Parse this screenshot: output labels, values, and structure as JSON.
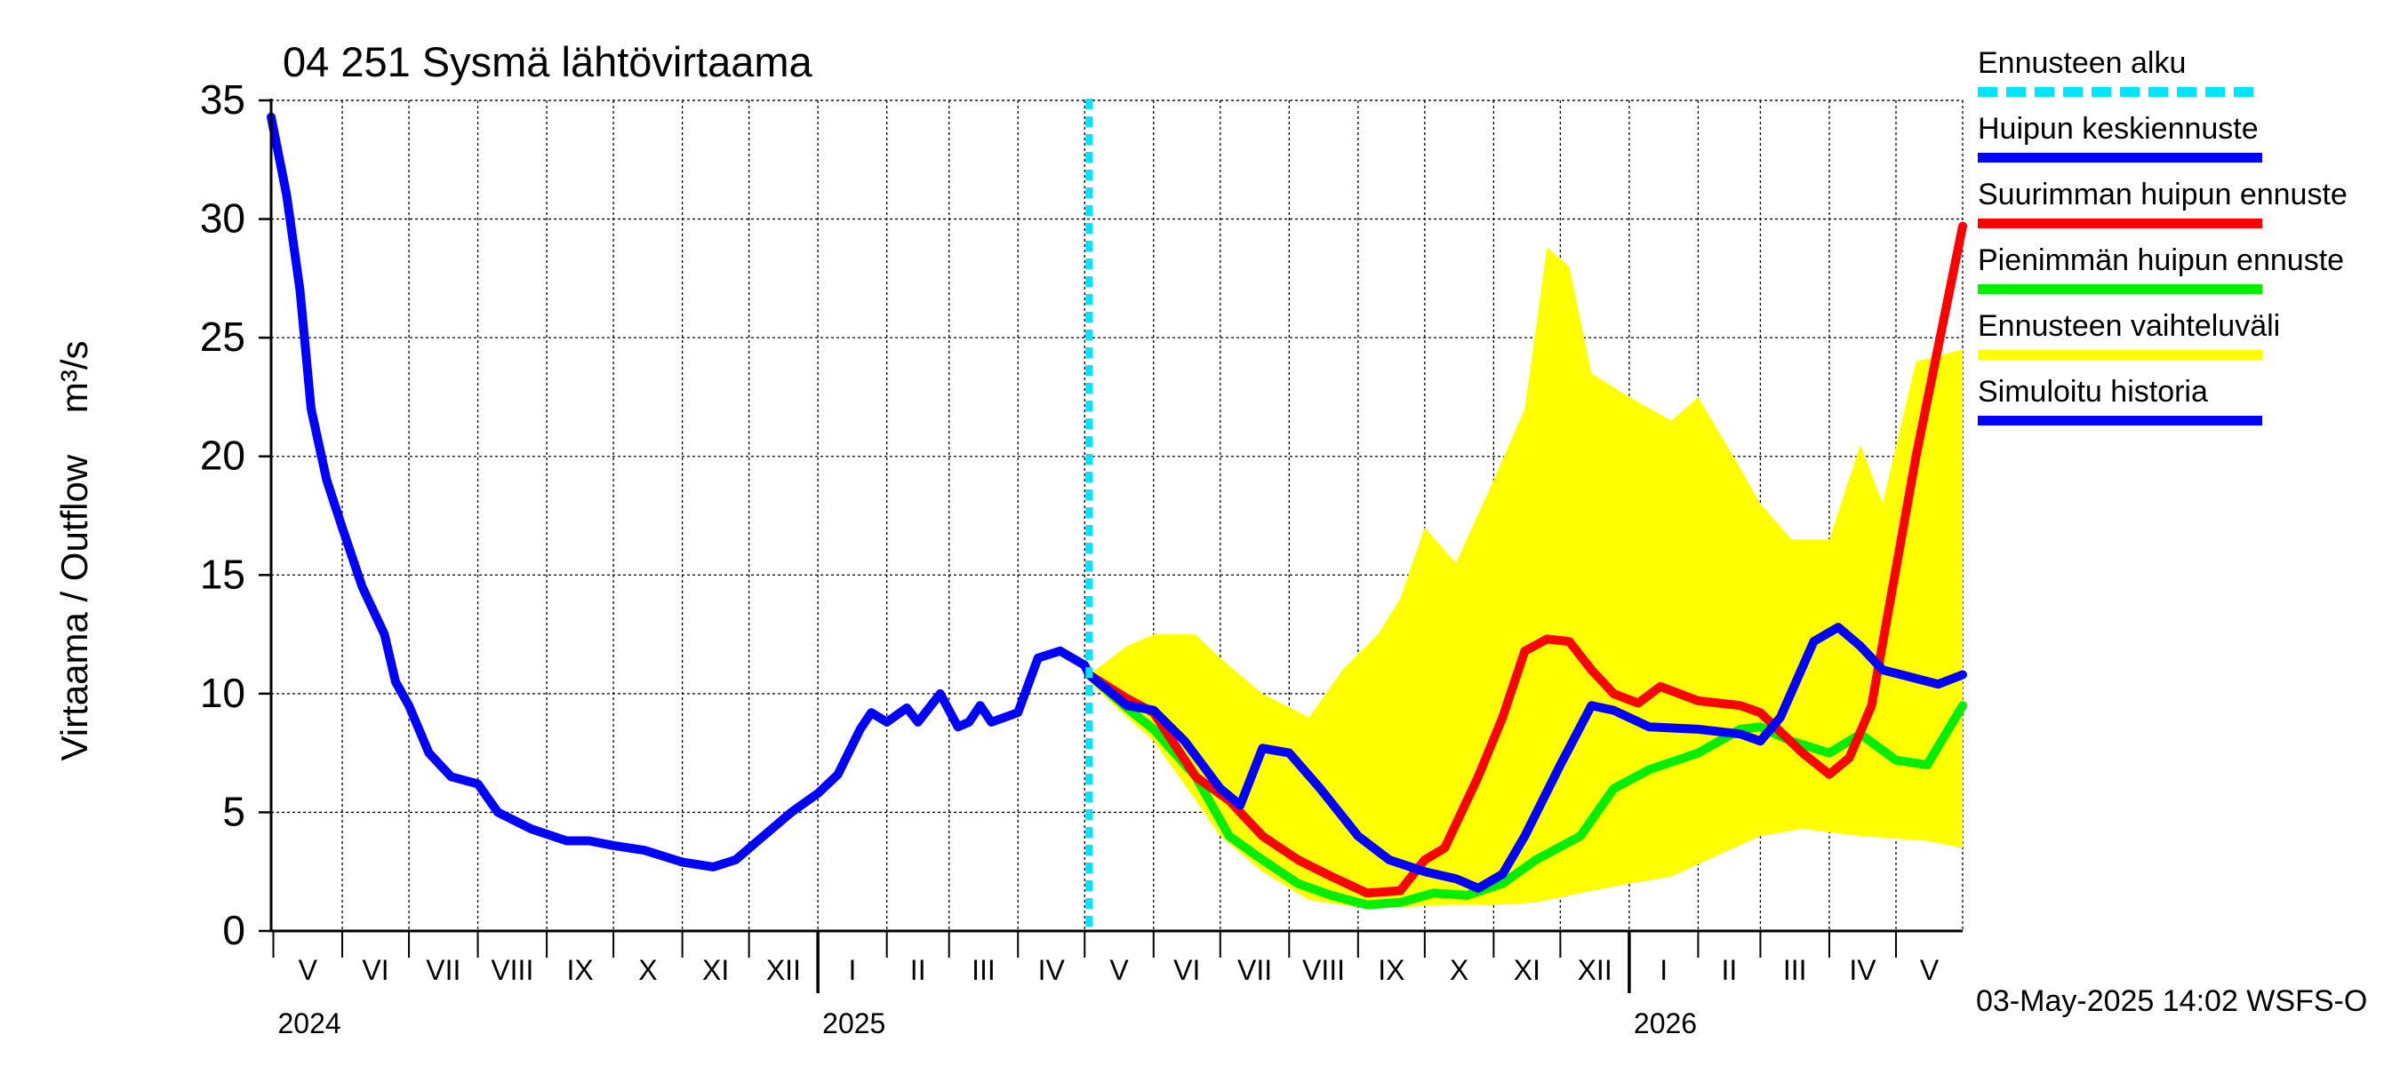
{
  "chart_data": {
    "type": "line",
    "title": "04 251 Sysmä lähtövirtaama",
    "ylabel": "Virtaama / Outflow    m³/s",
    "ylim": [
      0,
      35
    ],
    "yticks": [
      0,
      5,
      10,
      15,
      20,
      25,
      30,
      35
    ],
    "xlim": [
      "2024-04-30",
      "2026-05-31"
    ],
    "forecast_start": "2025-05-03",
    "grid": true,
    "legend_position": "right",
    "month_labels": [
      {
        "label": "V",
        "date": "2024-05-01"
      },
      {
        "label": "VI",
        "date": "2024-06-01"
      },
      {
        "label": "VII",
        "date": "2024-07-01"
      },
      {
        "label": "VIII",
        "date": "2024-08-01"
      },
      {
        "label": "IX",
        "date": "2024-09-01"
      },
      {
        "label": "X",
        "date": "2024-10-01"
      },
      {
        "label": "XI",
        "date": "2024-11-01"
      },
      {
        "label": "XII",
        "date": "2024-12-01"
      },
      {
        "label": "I",
        "date": "2025-01-01"
      },
      {
        "label": "II",
        "date": "2025-02-01"
      },
      {
        "label": "III",
        "date": "2025-03-01"
      },
      {
        "label": "IV",
        "date": "2025-04-01"
      },
      {
        "label": "V",
        "date": "2025-05-01"
      },
      {
        "label": "VI",
        "date": "2025-06-01"
      },
      {
        "label": "VII",
        "date": "2025-07-01"
      },
      {
        "label": "VIII",
        "date": "2025-08-01"
      },
      {
        "label": "IX",
        "date": "2025-09-01"
      },
      {
        "label": "X",
        "date": "2025-10-01"
      },
      {
        "label": "XI",
        "date": "2025-11-01"
      },
      {
        "label": "XII",
        "date": "2025-12-01"
      },
      {
        "label": "I",
        "date": "2026-01-01"
      },
      {
        "label": "II",
        "date": "2026-02-01"
      },
      {
        "label": "III",
        "date": "2026-03-01"
      },
      {
        "label": "IV",
        "date": "2026-04-01"
      },
      {
        "label": "V",
        "date": "2026-05-01"
      }
    ],
    "year_labels": [
      {
        "label": "2024",
        "date": "2024-05-01"
      },
      {
        "label": "2025",
        "date": "2025-01-01"
      },
      {
        "label": "2026",
        "date": "2026-01-01"
      }
    ],
    "band": {
      "name": "Ennusteen vaihteluväli",
      "upper": [
        [
          "2025-05-03",
          10.8
        ],
        [
          "2025-05-20",
          12.0
        ],
        [
          "2025-06-01",
          12.5
        ],
        [
          "2025-06-20",
          12.5
        ],
        [
          "2025-07-01",
          11.5
        ],
        [
          "2025-07-20",
          10.0
        ],
        [
          "2025-08-10",
          9.0
        ],
        [
          "2025-08-25",
          11.0
        ],
        [
          "2025-09-10",
          12.5
        ],
        [
          "2025-09-20",
          14.0
        ],
        [
          "2025-10-01",
          17.0
        ],
        [
          "2025-10-15",
          15.5
        ],
        [
          "2025-11-01",
          19.0
        ],
        [
          "2025-11-15",
          22.0
        ],
        [
          "2025-11-25",
          28.8
        ],
        [
          "2025-12-05",
          28.0
        ],
        [
          "2025-12-15",
          23.5
        ],
        [
          "2026-01-01",
          22.5
        ],
        [
          "2026-01-20",
          21.5
        ],
        [
          "2026-02-01",
          22.5
        ],
        [
          "2026-02-20",
          19.5
        ],
        [
          "2026-03-01",
          18.0
        ],
        [
          "2026-03-15",
          16.5
        ],
        [
          "2026-04-01",
          16.5
        ],
        [
          "2026-04-15",
          20.5
        ],
        [
          "2026-04-25",
          18.0
        ],
        [
          "2026-05-10",
          24.0
        ],
        [
          "2026-05-31",
          24.5
        ]
      ],
      "lower": [
        [
          "2025-05-03",
          10.5
        ],
        [
          "2025-05-20",
          9.0
        ],
        [
          "2025-06-01",
          8.0
        ],
        [
          "2025-06-20",
          5.5
        ],
        [
          "2025-07-01",
          4.0
        ],
        [
          "2025-07-20",
          2.5
        ],
        [
          "2025-08-10",
          1.3
        ],
        [
          "2025-09-01",
          1.0
        ],
        [
          "2025-09-20",
          1.0
        ],
        [
          "2025-10-10",
          1.1
        ],
        [
          "2025-11-01",
          1.1
        ],
        [
          "2025-11-20",
          1.2
        ],
        [
          "2025-12-10",
          1.6
        ],
        [
          "2026-01-01",
          2.0
        ],
        [
          "2026-01-20",
          2.3
        ],
        [
          "2026-02-10",
          3.2
        ],
        [
          "2026-03-01",
          4.0
        ],
        [
          "2026-03-20",
          4.3
        ],
        [
          "2026-04-15",
          4.0
        ],
        [
          "2026-05-15",
          3.8
        ],
        [
          "2026-05-31",
          3.5
        ]
      ]
    },
    "series": [
      {
        "name": "Simuloitu historia",
        "color": "#0000ff",
        "points": [
          [
            "2024-04-30",
            34.3
          ],
          [
            "2024-05-07",
            31.0
          ],
          [
            "2024-05-13",
            27.0
          ],
          [
            "2024-05-18",
            22.0
          ],
          [
            "2024-05-25",
            19.0
          ],
          [
            "2024-06-01",
            17.0
          ],
          [
            "2024-06-10",
            14.5
          ],
          [
            "2024-06-20",
            12.5
          ],
          [
            "2024-06-25",
            10.5
          ],
          [
            "2024-07-01",
            9.5
          ],
          [
            "2024-07-10",
            7.5
          ],
          [
            "2024-07-20",
            6.5
          ],
          [
            "2024-08-01",
            6.2
          ],
          [
            "2024-08-10",
            5.0
          ],
          [
            "2024-08-25",
            4.3
          ],
          [
            "2024-09-10",
            3.8
          ],
          [
            "2024-09-20",
            3.8
          ],
          [
            "2024-10-01",
            3.6
          ],
          [
            "2024-10-15",
            3.4
          ],
          [
            "2024-11-01",
            2.9
          ],
          [
            "2024-11-15",
            2.7
          ],
          [
            "2024-11-25",
            3.0
          ],
          [
            "2024-12-05",
            3.8
          ],
          [
            "2024-12-20",
            5.0
          ],
          [
            "2025-01-01",
            5.8
          ],
          [
            "2025-01-10",
            6.6
          ],
          [
            "2025-01-20",
            8.5
          ],
          [
            "2025-01-25",
            9.2
          ],
          [
            "2025-02-01",
            8.8
          ],
          [
            "2025-02-10",
            9.4
          ],
          [
            "2025-02-15",
            8.8
          ],
          [
            "2025-02-25",
            10.0
          ],
          [
            "2025-03-05",
            8.6
          ],
          [
            "2025-03-10",
            8.8
          ],
          [
            "2025-03-15",
            9.5
          ],
          [
            "2025-03-20",
            8.8
          ],
          [
            "2025-04-01",
            9.2
          ],
          [
            "2025-04-10",
            11.5
          ],
          [
            "2025-04-20",
            11.8
          ],
          [
            "2025-05-01",
            11.2
          ],
          [
            "2025-05-03",
            10.8
          ]
        ]
      },
      {
        "name": "Huipun keskiennuste",
        "color": "#0000ff",
        "points": [
          [
            "2025-05-03",
            10.8
          ],
          [
            "2025-05-20",
            9.5
          ],
          [
            "2025-06-01",
            9.3
          ],
          [
            "2025-06-15",
            8.0
          ],
          [
            "2025-07-01",
            6.0
          ],
          [
            "2025-07-10",
            5.3
          ],
          [
            "2025-07-20",
            7.7
          ],
          [
            "2025-08-01",
            7.5
          ],
          [
            "2025-08-15",
            6.0
          ],
          [
            "2025-09-01",
            4.0
          ],
          [
            "2025-09-15",
            3.0
          ],
          [
            "2025-10-01",
            2.5
          ],
          [
            "2025-10-15",
            2.2
          ],
          [
            "2025-10-25",
            1.8
          ],
          [
            "2025-11-05",
            2.4
          ],
          [
            "2025-11-15",
            4.0
          ],
          [
            "2025-12-01",
            7.0
          ],
          [
            "2025-12-15",
            9.5
          ],
          [
            "2025-12-25",
            9.3
          ],
          [
            "2026-01-10",
            8.6
          ],
          [
            "2026-02-01",
            8.5
          ],
          [
            "2026-02-20",
            8.3
          ],
          [
            "2026-03-01",
            8.0
          ],
          [
            "2026-03-10",
            9.0
          ],
          [
            "2026-03-25",
            12.2
          ],
          [
            "2026-04-05",
            12.8
          ],
          [
            "2026-04-15",
            12.0
          ],
          [
            "2026-04-25",
            11.0
          ],
          [
            "2026-05-20",
            10.4
          ],
          [
            "2026-05-31",
            10.8
          ]
        ]
      },
      {
        "name": "Suurimman huipun ennuste",
        "color": "#ff0000",
        "points": [
          [
            "2025-05-03",
            10.8
          ],
          [
            "2025-05-20",
            9.8
          ],
          [
            "2025-06-01",
            9.2
          ],
          [
            "2025-06-20",
            6.5
          ],
          [
            "2025-07-05",
            5.5
          ],
          [
            "2025-07-20",
            4.0
          ],
          [
            "2025-08-05",
            3.0
          ],
          [
            "2025-08-20",
            2.3
          ],
          [
            "2025-09-05",
            1.6
          ],
          [
            "2025-09-20",
            1.7
          ],
          [
            "2025-10-01",
            3.0
          ],
          [
            "2025-10-10",
            3.5
          ],
          [
            "2025-10-25",
            6.5
          ],
          [
            "2025-11-05",
            9.0
          ],
          [
            "2025-11-15",
            11.8
          ],
          [
            "2025-11-25",
            12.3
          ],
          [
            "2025-12-05",
            12.2
          ],
          [
            "2025-12-15",
            11.0
          ],
          [
            "2025-12-25",
            10.0
          ],
          [
            "2026-01-05",
            9.6
          ],
          [
            "2026-01-15",
            10.3
          ],
          [
            "2026-02-01",
            9.7
          ],
          [
            "2026-02-20",
            9.5
          ],
          [
            "2026-03-01",
            9.2
          ],
          [
            "2026-03-20",
            7.5
          ],
          [
            "2026-04-01",
            6.6
          ],
          [
            "2026-04-10",
            7.3
          ],
          [
            "2026-04-20",
            9.5
          ],
          [
            "2026-05-10",
            20.0
          ],
          [
            "2026-05-31",
            29.7
          ]
        ]
      },
      {
        "name": "Pienimmän huipun ennuste",
        "color": "#00ee00",
        "points": [
          [
            "2025-05-03",
            10.8
          ],
          [
            "2025-05-20",
            9.4
          ],
          [
            "2025-06-01",
            8.5
          ],
          [
            "2025-06-20",
            6.5
          ],
          [
            "2025-07-05",
            4.0
          ],
          [
            "2025-07-20",
            3.0
          ],
          [
            "2025-08-05",
            2.0
          ],
          [
            "2025-08-20",
            1.5
          ],
          [
            "2025-09-05",
            1.1
          ],
          [
            "2025-09-20",
            1.2
          ],
          [
            "2025-10-05",
            1.6
          ],
          [
            "2025-10-20",
            1.5
          ],
          [
            "2025-11-05",
            2.0
          ],
          [
            "2025-11-20",
            3.0
          ],
          [
            "2025-12-10",
            4.0
          ],
          [
            "2025-12-25",
            6.0
          ],
          [
            "2026-01-10",
            6.8
          ],
          [
            "2026-02-01",
            7.5
          ],
          [
            "2026-02-20",
            8.5
          ],
          [
            "2026-03-01",
            8.6
          ],
          [
            "2026-03-15",
            8.0
          ],
          [
            "2026-04-01",
            7.5
          ],
          [
            "2026-04-15",
            8.3
          ],
          [
            "2026-05-01",
            7.2
          ],
          [
            "2026-05-15",
            7.0
          ],
          [
            "2026-05-31",
            9.5
          ]
        ]
      }
    ]
  },
  "legend": [
    {
      "label": "Ennusteen alku",
      "color": "#00e5ff",
      "style": "dashed"
    },
    {
      "label": "Huipun keskiennuste",
      "color": "#0000ff",
      "style": "solid"
    },
    {
      "label": "Suurimman huipun ennuste",
      "color": "#ff0000",
      "style": "solid"
    },
    {
      "label": "Pienimmän huipun ennuste",
      "color": "#00ee00",
      "style": "solid"
    },
    {
      "label": "Ennusteen vaihteluväli",
      "color": "#ffff00",
      "style": "solid"
    },
    {
      "label": "Simuloitu historia",
      "color": "#0000ff",
      "style": "solid"
    }
  ],
  "footer": "03-May-2025 14:02 WSFS-O"
}
